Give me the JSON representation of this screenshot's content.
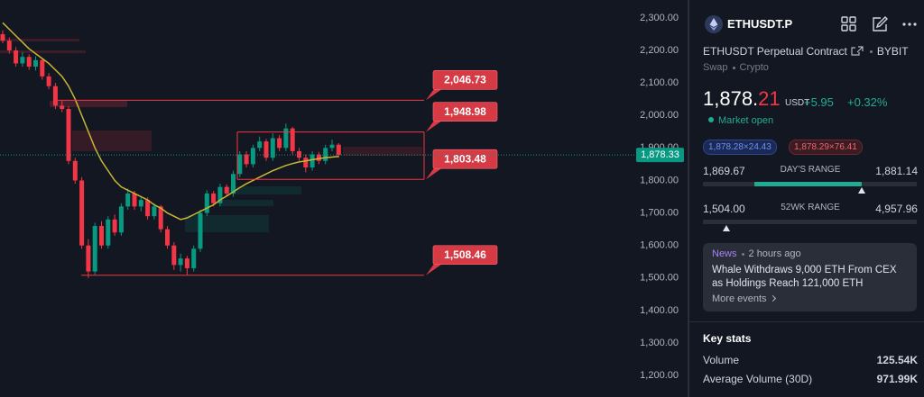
{
  "chart_data": {
    "type": "candlestick",
    "ylim": [
      1134,
      2355
    ],
    "yticks": [
      {
        "value": 2300,
        "label": "2,300.00"
      },
      {
        "value": 2200,
        "label": "2,200.00"
      },
      {
        "value": 2100,
        "label": "2,100.00"
      },
      {
        "value": 2000,
        "label": "2,000.00"
      },
      {
        "value": 1900,
        "label": "1,900.00"
      },
      {
        "value": 1800,
        "label": "1,800.00"
      },
      {
        "value": 1700,
        "label": "1,700.00"
      },
      {
        "value": 1600,
        "label": "1,600.00"
      },
      {
        "value": 1500,
        "label": "1,500.00"
      },
      {
        "value": 1400,
        "label": "1,400.00"
      },
      {
        "value": 1300,
        "label": "1,300.00"
      },
      {
        "value": 1200,
        "label": "1,200.00"
      }
    ],
    "up_color": "#089981",
    "down_color": "#f23645",
    "candles": [
      [
        2250,
        2262,
        2222,
        2230
      ],
      [
        2230,
        2240,
        2190,
        2200
      ],
      [
        2200,
        2210,
        2150,
        2160
      ],
      [
        2160,
        2195,
        2150,
        2180
      ],
      [
        2180,
        2188,
        2140,
        2150
      ],
      [
        2150,
        2182,
        2138,
        2170
      ],
      [
        2170,
        2176,
        2110,
        2120
      ],
      [
        2120,
        2130,
        2080,
        2090
      ],
      [
        2090,
        2100,
        2020,
        2030
      ],
      [
        2030,
        2045,
        2010,
        2020
      ],
      [
        2020,
        2028,
        1850,
        1860
      ],
      [
        1860,
        1870,
        1790,
        1800
      ],
      [
        1800,
        1810,
        1590,
        1600
      ],
      [
        1600,
        1620,
        1500,
        1520
      ],
      [
        1520,
        1670,
        1510,
        1660
      ],
      [
        1660,
        1675,
        1590,
        1600
      ],
      [
        1600,
        1690,
        1590,
        1680
      ],
      [
        1680,
        1695,
        1630,
        1640
      ],
      [
        1640,
        1730,
        1630,
        1720
      ],
      [
        1720,
        1775,
        1710,
        1760
      ],
      [
        1760,
        1768,
        1710,
        1720
      ],
      [
        1720,
        1750,
        1705,
        1740
      ],
      [
        1740,
        1748,
        1680,
        1690
      ],
      [
        1690,
        1730,
        1680,
        1720
      ],
      [
        1720,
        1725,
        1640,
        1650
      ],
      [
        1650,
        1660,
        1590,
        1600
      ],
      [
        1600,
        1610,
        1525,
        1540
      ],
      [
        1540,
        1575,
        1520,
        1560
      ],
      [
        1560,
        1568,
        1510,
        1530
      ],
      [
        1530,
        1600,
        1520,
        1590
      ],
      [
        1590,
        1710,
        1580,
        1700
      ],
      [
        1700,
        1770,
        1690,
        1760
      ],
      [
        1760,
        1768,
        1720,
        1730
      ],
      [
        1730,
        1790,
        1720,
        1780
      ],
      [
        1780,
        1788,
        1750,
        1760
      ],
      [
        1760,
        1830,
        1750,
        1820
      ],
      [
        1820,
        1890,
        1810,
        1880
      ],
      [
        1880,
        1890,
        1840,
        1850
      ],
      [
        1850,
        1910,
        1840,
        1900
      ],
      [
        1900,
        1935,
        1890,
        1920
      ],
      [
        1920,
        1928,
        1860,
        1870
      ],
      [
        1870,
        1945,
        1860,
        1930
      ],
      [
        1930,
        1940,
        1890,
        1900
      ],
      [
        1900,
        1975,
        1890,
        1960
      ],
      [
        1960,
        1965,
        1880,
        1890
      ],
      [
        1890,
        1900,
        1860,
        1870
      ],
      [
        1870,
        1880,
        1825,
        1840
      ],
      [
        1840,
        1890,
        1830,
        1880
      ],
      [
        1880,
        1888,
        1850,
        1860
      ],
      [
        1860,
        1910,
        1850,
        1900
      ],
      [
        1900,
        1925,
        1890,
        1910
      ],
      [
        1910,
        1915,
        1870,
        1878.33
      ]
    ],
    "indicator": {
      "color": "#c9b634",
      "values": [
        2285,
        2265,
        2245,
        2225,
        2205,
        2190,
        2175,
        2160,
        2140,
        2120,
        2090,
        2050,
        2000,
        1950,
        1900,
        1860,
        1830,
        1800,
        1780,
        1770,
        1760,
        1750,
        1740,
        1725,
        1715,
        1700,
        1690,
        1680,
        1685,
        1695,
        1705,
        1715,
        1725,
        1740,
        1752,
        1765,
        1778,
        1790,
        1800,
        1810,
        1820,
        1830,
        1838,
        1846,
        1852,
        1857,
        1860,
        1864,
        1867,
        1870,
        1872,
        1874
      ]
    },
    "levels": [
      {
        "value": 2046.73,
        "label": "2,046.73"
      },
      {
        "value": 1948.98,
        "label": "1,948.98"
      },
      {
        "value": 1803.48,
        "label": "1,803.48"
      },
      {
        "value": 1508.46,
        "label": "1,508.46"
      }
    ],
    "level_color": "#f23645",
    "last": {
      "value": 1878.33,
      "label": "1,878.33"
    }
  },
  "panel": {
    "symbol": "ETHUSDT.P",
    "description": "ETHUSDT Perpetual Contract",
    "exchange": "BYBIT",
    "type": "Swap",
    "category": "Crypto",
    "last": {
      "value": 1878.21,
      "label": "1,878.",
      "fraction": "21"
    },
    "currency": "USDT",
    "change": "+5.95",
    "change_pct": "+0.32%",
    "status": "Market open",
    "bid": "1,878.28×24.43",
    "ask": "1,878.29×76.41",
    "day_range": {
      "label": "DAY'S RANGE",
      "low": {
        "value": 1869.67,
        "label": "1,869.67"
      },
      "high": {
        "value": 1881.14,
        "label": "1,881.14"
      }
    },
    "week52_range": {
      "label": "52WK RANGE",
      "low": {
        "value": 1504.0,
        "label": "1,504.00"
      },
      "high": {
        "value": 4957.96,
        "label": "4,957.96"
      }
    },
    "news": {
      "tag": "News",
      "time": "2 hours ago",
      "headline": "Whale Withdraws 9,000 ETH From CEX as Holdings Reach 121,000 ETH",
      "more": "More events"
    },
    "key_stats": {
      "title": "Key stats",
      "rows": [
        {
          "label": "Volume",
          "value": "125.54K"
        },
        {
          "label": "Average Volume (30D)",
          "value": "971.99K"
        }
      ]
    }
  }
}
